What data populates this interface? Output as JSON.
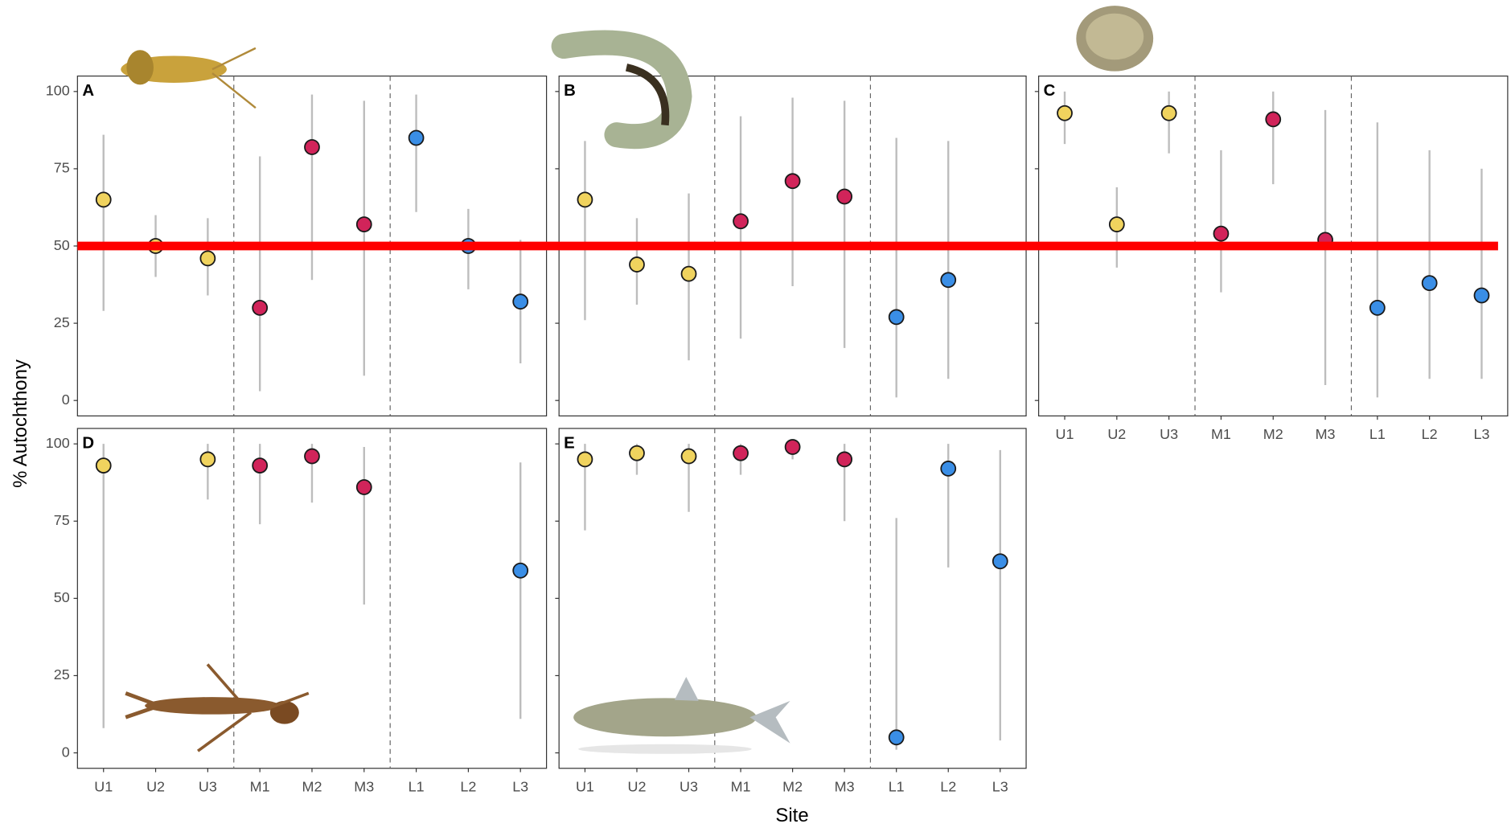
{
  "y_label": "% Autochthony",
  "x_label": "Site",
  "reference_line": {
    "value": 50,
    "color": "#ff0000"
  },
  "colors": [
    "#f0d35e",
    "#f0d35e",
    "#f0d35e",
    "#d1245a",
    "#d1245a",
    "#d1245a",
    "#3a8ee6",
    "#3a8ee6",
    "#3a8ee6"
  ],
  "chart_data": [
    {
      "type": "errorpoint",
      "title": "A",
      "categories": [
        "U1",
        "U2",
        "U3",
        "M1",
        "M2",
        "M3",
        "L1",
        "L2",
        "L3"
      ],
      "values": [
        65,
        50,
        46,
        30,
        82,
        57,
        85,
        50,
        32
      ],
      "lower": [
        29,
        40,
        34,
        3,
        39,
        8,
        61,
        36,
        12
      ],
      "upper": [
        86,
        60,
        59,
        79,
        99,
        97,
        99,
        62,
        52
      ],
      "ylim": [
        -5,
        105
      ],
      "yticks": [
        0,
        25,
        50,
        75,
        100
      ]
    },
    {
      "type": "errorpoint",
      "title": "B",
      "categories": [
        "U1",
        "U2",
        "U3",
        "M1",
        "M2",
        "M3",
        "L1",
        "L2",
        "L3"
      ],
      "values": [
        65,
        44,
        41,
        58,
        71,
        66,
        27,
        39,
        null
      ],
      "lower": [
        26,
        31,
        13,
        20,
        37,
        17,
        1,
        7,
        null
      ],
      "upper": [
        84,
        59,
        67,
        92,
        98,
        97,
        85,
        84,
        null
      ],
      "ylim": [
        -5,
        105
      ],
      "yticks": [
        0,
        25,
        50,
        75,
        100
      ]
    },
    {
      "type": "errorpoint",
      "title": "C",
      "categories": [
        "U1",
        "U2",
        "U3",
        "M1",
        "M2",
        "M3",
        "L1",
        "L2",
        "L3"
      ],
      "values": [
        93,
        57,
        93,
        54,
        91,
        52,
        30,
        38,
        34
      ],
      "lower": [
        83,
        43,
        80,
        35,
        70,
        5,
        1,
        7,
        7
      ],
      "upper": [
        100,
        69,
        100,
        81,
        100,
        94,
        90,
        81,
        75
      ],
      "ylim": [
        -5,
        105
      ],
      "yticks": [
        0,
        25,
        50,
        75,
        100
      ]
    },
    {
      "type": "errorpoint",
      "title": "D",
      "categories": [
        "U1",
        "U2",
        "U3",
        "M1",
        "M2",
        "M3",
        "L1",
        "L2",
        "L3"
      ],
      "values": [
        93,
        null,
        95,
        93,
        96,
        86,
        null,
        null,
        59
      ],
      "lower": [
        8,
        null,
        82,
        74,
        81,
        48,
        null,
        null,
        11
      ],
      "upper": [
        100,
        null,
        100,
        100,
        100,
        99,
        null,
        null,
        94
      ],
      "ylim": [
        -5,
        105
      ],
      "yticks": [
        0,
        25,
        50,
        75,
        100
      ]
    },
    {
      "type": "errorpoint",
      "title": "E",
      "categories": [
        "U1",
        "U2",
        "U3",
        "M1",
        "M2",
        "M3",
        "L1",
        "L2",
        "L3"
      ],
      "values": [
        95,
        97,
        96,
        97,
        99,
        95,
        5,
        92,
        62
      ],
      "lower": [
        72,
        90,
        78,
        90,
        95,
        75,
        1,
        60,
        4
      ],
      "upper": [
        100,
        100,
        100,
        100,
        100,
        100,
        76,
        100,
        98
      ],
      "ylim": [
        -5,
        105
      ],
      "yticks": [
        0,
        25,
        50,
        75,
        100
      ]
    }
  ]
}
